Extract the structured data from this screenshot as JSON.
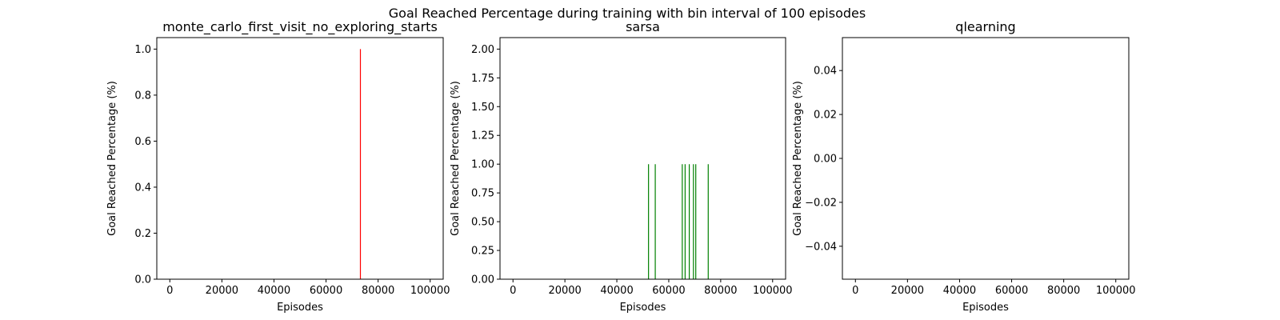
{
  "figure": {
    "suptitle": "Goal Reached Percentage during training with bin interval of 100 episodes"
  },
  "chart_data": [
    {
      "type": "bar",
      "title": "monte_carlo_first_visit_no_exploring_starts",
      "xlabel": "Episodes",
      "ylabel": "Goal Reached Percentage (%)",
      "color": "#ff0000",
      "xlim": [
        -5000,
        105000
      ],
      "ylim": [
        0,
        1.05
      ],
      "xticks": [
        0,
        20000,
        40000,
        60000,
        80000,
        100000
      ],
      "xtick_labels": [
        "0",
        "20000",
        "40000",
        "60000",
        "80000",
        "100000"
      ],
      "yticks": [
        0,
        0.2,
        0.4,
        0.6,
        0.8,
        1.0
      ],
      "ytick_labels": [
        "0.0",
        "0.2",
        "0.4",
        "0.6",
        "0.8",
        "1.0"
      ],
      "x": [
        73200
      ],
      "values": [
        1
      ]
    },
    {
      "type": "bar",
      "title": "sarsa",
      "xlabel": "Episodes",
      "ylabel": "Goal Reached Percentage (%)",
      "color": "#008000",
      "xlim": [
        -5000,
        105000
      ],
      "ylim": [
        0,
        2.1
      ],
      "xticks": [
        0,
        20000,
        40000,
        60000,
        80000,
        100000
      ],
      "xtick_labels": [
        "0",
        "20000",
        "40000",
        "60000",
        "80000",
        "100000"
      ],
      "yticks": [
        0,
        0.25,
        0.5,
        0.75,
        1.0,
        1.25,
        1.5,
        1.75,
        2.0
      ],
      "ytick_labels": [
        "0.00",
        "0.25",
        "0.50",
        "0.75",
        "1.00",
        "1.25",
        "1.50",
        "1.75",
        "2.00"
      ],
      "x": [
        52200,
        54800,
        65200,
        66300,
        67900,
        69500,
        70400,
        75200
      ],
      "values": [
        1,
        1,
        1,
        1,
        1,
        1,
        1,
        1
      ]
    },
    {
      "type": "bar",
      "title": "qlearning",
      "xlabel": "Episodes",
      "ylabel": "Goal Reached Percentage (%)",
      "color": "#1f77b4",
      "xlim": [
        -5000,
        105000
      ],
      "ylim": [
        -0.055,
        0.055
      ],
      "xticks": [
        0,
        20000,
        40000,
        60000,
        80000,
        100000
      ],
      "xtick_labels": [
        "0",
        "20000",
        "40000",
        "60000",
        "80000",
        "100000"
      ],
      "yticks": [
        -0.04,
        -0.02,
        0.0,
        0.02,
        0.04
      ],
      "ytick_labels": [
        "−0.04",
        "−0.02",
        "0.00",
        "0.02",
        "0.04"
      ],
      "x": [],
      "values": []
    }
  ]
}
